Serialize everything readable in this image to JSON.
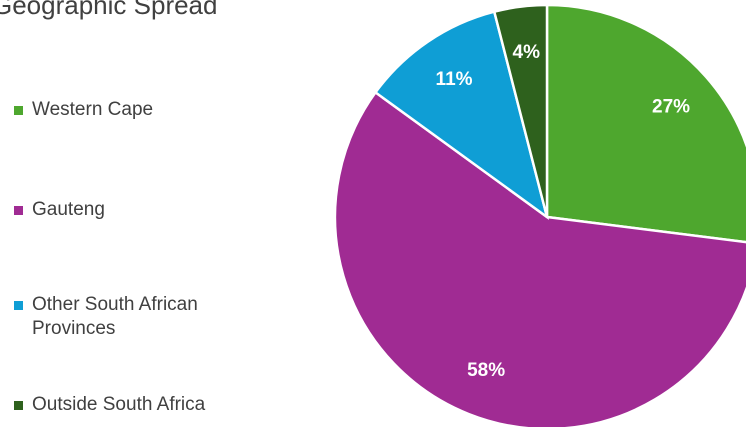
{
  "chart_data": {
    "type": "pie",
    "title": "Geographic Spread",
    "categories": [
      "Western Cape",
      "Gauteng",
      "Other South African Provinces",
      "Outside South Africa"
    ],
    "values": [
      27,
      58,
      11,
      4
    ],
    "value_labels": [
      "27%",
      "58%",
      "11%",
      "4%"
    ],
    "colors": [
      "#4ea72e",
      "#a02b93",
      "#0f9ed5",
      "#2e611d"
    ],
    "legend": "left"
  }
}
